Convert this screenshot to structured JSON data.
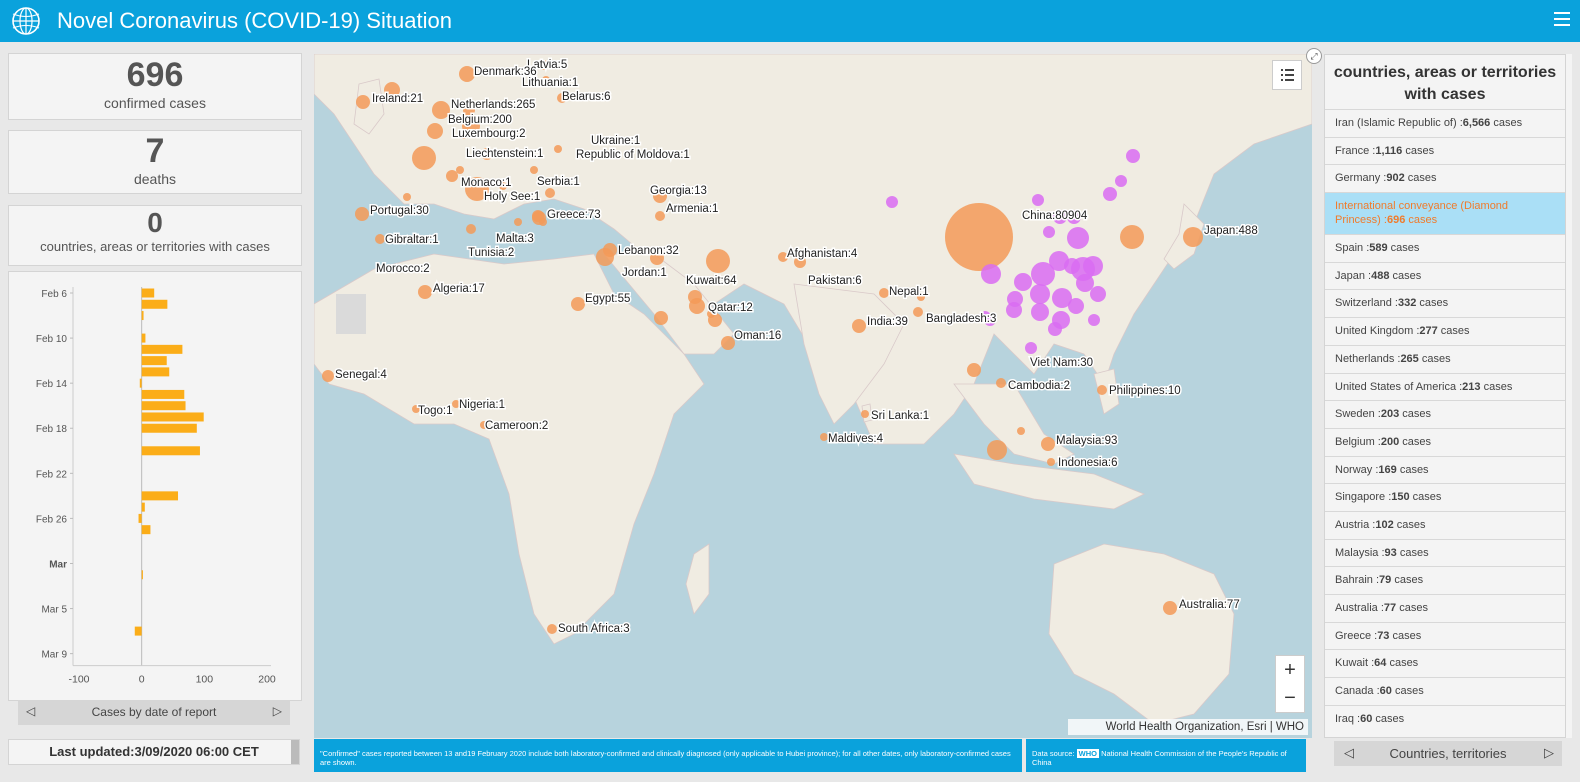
{
  "header": {
    "title": "Novel Coronavirus (COVID-19) Situation"
  },
  "stats": {
    "confirmed": {
      "value": "696",
      "label": "confirmed cases"
    },
    "deaths": {
      "value": "7",
      "label": "deaths"
    },
    "countries": {
      "value": "0",
      "label": "countries, areas or territories with cases"
    }
  },
  "chart_nav": {
    "label": "Cases by date of report"
  },
  "chart_data": {
    "type": "bar",
    "orientation": "horizontal",
    "xlim": [
      -100,
      200
    ],
    "xticks": [
      "-100",
      "0",
      "100",
      "200"
    ],
    "ytick_labels": [
      "Feb 6",
      "Feb 10",
      "Feb 14",
      "Feb 18",
      "Feb 22",
      "Feb 26",
      "Mar",
      "Mar 5",
      "Mar 9"
    ],
    "dates": [
      "Feb 6",
      "Feb 7",
      "Feb 8",
      "Feb 9",
      "Feb 10",
      "Feb 11",
      "Feb 12",
      "Feb 13",
      "Feb 14",
      "Feb 15",
      "Feb 16",
      "Feb 17",
      "Feb 18",
      "Feb 19",
      "Feb 20",
      "Feb 21",
      "Feb 22",
      "Feb 23",
      "Feb 24",
      "Feb 25",
      "Feb 26",
      "Feb 27",
      "Feb 28",
      "Feb 29",
      "Mar 1",
      "Mar 2",
      "Mar 3",
      "Mar 4",
      "Mar 5",
      "Mar 6",
      "Mar 7",
      "Mar 8",
      "Mar 9"
    ],
    "values": [
      20,
      41,
      3,
      0,
      6,
      65,
      40,
      44,
      -3,
      68,
      70,
      99,
      88,
      0,
      93,
      0,
      0,
      0,
      58,
      5,
      -5,
      14,
      0,
      0,
      0,
      2,
      0,
      0,
      0,
      0,
      -11,
      0,
      0
    ],
    "grid": false,
    "color": "#fbad18"
  },
  "last_updated": "Last updated:3/09/2020 06:00 CET",
  "map": {
    "attribution": "World Health Organization, Esri | WHO",
    "colors": {
      "ocean": "#b7d3dd",
      "land": "#f0ece2",
      "outside": "#f39a58",
      "china": "#d96cf2"
    },
    "labels": [
      "Latvia:5",
      "Denmark:36",
      "Lithuania:1",
      "Ireland:21",
      "Netherlands:265",
      "Belarus:6",
      "Belgium:200",
      "Luxembourg:2",
      "Ukraine:1",
      "Liechtenstein:1",
      "Republic of Moldova:1",
      "Serbia:1",
      "Monaco:1",
      "Holy See:1",
      "Georgia:13",
      "Portugal:30",
      "Armenia:1",
      "Greece:73",
      "Gibraltar:1",
      "Malta:3",
      "Tunisia:2",
      "Lebanon:32",
      "Afghanistan:4",
      "Morocco:2",
      "Jordan:1",
      "Algeria:17",
      "Kuwait:64",
      "Pakistan:6",
      "Egypt:55",
      "Qatar:12",
      "Nepal:1",
      "Oman:16",
      "India:39",
      "Bangladesh:3",
      "China:80904",
      "Japan:488",
      "Viet Nam:30",
      "Senegal:4",
      "Cambodia:2",
      "Philippines:10",
      "Nigeria:1",
      "Togo:1",
      "Sri Lanka:1",
      "Cameroon:2",
      "Malaysia:93",
      "Maldives:4",
      "Indonesia:6",
      "South Africa:3",
      "Australia:77"
    ]
  },
  "notes": {
    "left": "\"Confirmed\" cases reported between 13 and19 February 2020 include both laboratory-confirmed and clinically diagnosed (only  applicable to Hubei province); for all other dates, only laboratory-confirmed cases are shown.",
    "right_prefix": "Data source:",
    "right_tag": "WHO",
    "right_text": "National Health Commission of the People's Republic of China"
  },
  "right_panel": {
    "title": "countries, areas or territories with cases",
    "items": [
      {
        "name": "Iran (Islamic Republic of) :",
        "count": "6,566",
        "suffix": " cases"
      },
      {
        "name": "France :",
        "count": "1,116",
        "suffix": " cases"
      },
      {
        "name": "Germany :",
        "count": "902",
        "suffix": " cases"
      },
      {
        "name": "International conveyance (Diamond Princess) :",
        "count": "696",
        "suffix": " cases"
      },
      {
        "name": "Spain :",
        "count": "589",
        "suffix": " cases"
      },
      {
        "name": "Japan :",
        "count": "488",
        "suffix": " cases"
      },
      {
        "name": "Switzerland :",
        "count": "332",
        "suffix": " cases"
      },
      {
        "name": "United Kingdom :",
        "count": "277",
        "suffix": " cases"
      },
      {
        "name": "Netherlands :",
        "count": "265",
        "suffix": " cases"
      },
      {
        "name": "United States of America :",
        "count": "213",
        "suffix": " cases"
      },
      {
        "name": "Sweden :",
        "count": "203",
        "suffix": " cases"
      },
      {
        "name": "Belgium :",
        "count": "200",
        "suffix": " cases"
      },
      {
        "name": "Norway :",
        "count": "169",
        "suffix": " cases"
      },
      {
        "name": "Singapore :",
        "count": "150",
        "suffix": " cases"
      },
      {
        "name": "Austria :",
        "count": "102",
        "suffix": " cases"
      },
      {
        "name": "Malaysia :",
        "count": "93",
        "suffix": " cases"
      },
      {
        "name": "Bahrain :",
        "count": "79",
        "suffix": " cases"
      },
      {
        "name": "Australia :",
        "count": "77",
        "suffix": " cases"
      },
      {
        "name": "Greece :",
        "count": "73",
        "suffix": " cases"
      },
      {
        "name": "Kuwait :",
        "count": "64",
        "suffix": " cases"
      },
      {
        "name": "Canada :",
        "count": "60",
        "suffix": " cases"
      },
      {
        "name": "Iraq :",
        "count": "60",
        "suffix": " cases"
      }
    ],
    "selected_index": 3,
    "nav_label": "Countries, territories"
  }
}
